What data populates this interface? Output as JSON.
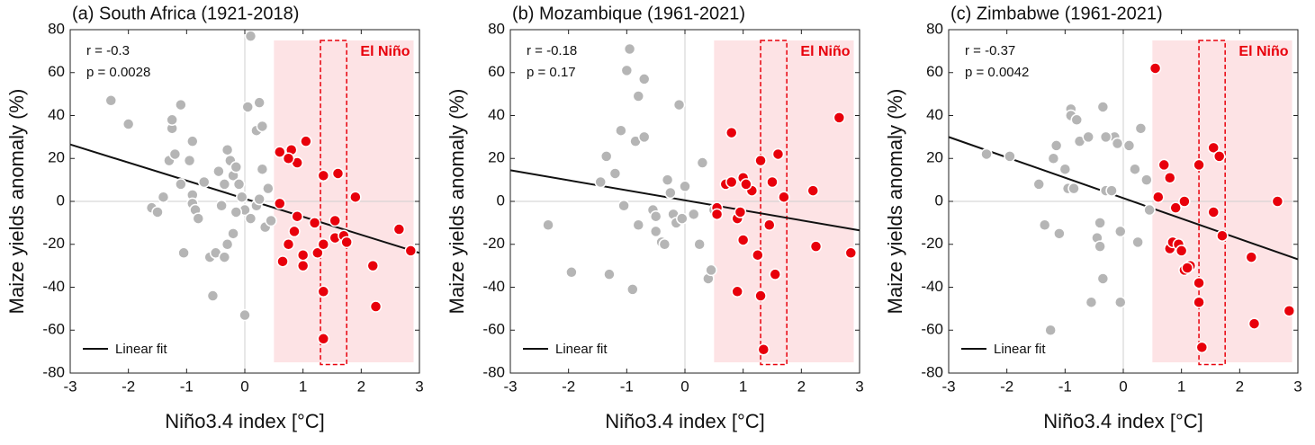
{
  "chart_data": [
    {
      "type": "scatter",
      "title": "(a) South Africa (1921-2018)",
      "x_label": "Niño3.4 index [°C]",
      "y_label": "Maize yields anomaly (%)",
      "xlim": [
        -3,
        3
      ],
      "ylim": [
        -80,
        80
      ],
      "xticks": [
        -3,
        -2,
        -1,
        0,
        1,
        2,
        3
      ],
      "yticks": [
        -80,
        -60,
        -40,
        -20,
        0,
        20,
        40,
        60,
        80
      ],
      "zero_lines": true,
      "annotations": [
        "r = -0.3",
        "p = 0.0028"
      ],
      "shade": {
        "label": "El Niño",
        "color": "#fde3e5",
        "xlim": [
          0.5,
          2.9
        ],
        "ylim": [
          -75,
          75
        ]
      },
      "highlight": {
        "color": "#e8000b",
        "xlim": [
          1.3,
          1.75
        ],
        "ylim": [
          -76,
          75
        ]
      },
      "fit": {
        "name": "Linear fit",
        "color": "#111111",
        "x": [
          -3,
          3
        ],
        "values": [
          26.5,
          -24
        ]
      },
      "series": [
        {
          "color": "#b5b5b5",
          "x": [
            -2.3,
            -2.0,
            -1.6,
            -1.5,
            -1.4,
            -1.3,
            -1.25,
            -1.25,
            -1.2,
            -1.1,
            -1.1,
            -1.05,
            -0.95,
            -0.9,
            -0.9,
            -0.9,
            -0.85,
            -0.8,
            -0.7,
            -0.6,
            -0.55,
            -0.5,
            -0.45,
            -0.4,
            -0.35,
            -0.3,
            -0.25,
            -0.2,
            -0.15,
            -0.1,
            -0.05,
            0.0,
            0.05,
            0.0,
            0.1,
            0.1,
            0.2,
            0.25,
            0.3,
            0.35,
            0.4,
            0.45,
            0.2,
            -0.3,
            -0.15,
            -0.35,
            0.25,
            0.3,
            -0.2
          ],
          "values": [
            47,
            36,
            -3,
            -5,
            2,
            19,
            34,
            38,
            22,
            45,
            8,
            -24,
            19,
            28,
            3,
            -1,
            -4,
            -8,
            9,
            -26,
            -44,
            -24,
            14,
            -2,
            -26,
            24,
            19,
            12,
            16,
            8,
            2,
            -4,
            44,
            -53,
            77,
            -8,
            33,
            46,
            15,
            -12,
            6,
            -9,
            -2,
            -20,
            -5,
            8,
            1,
            35,
            -15
          ]
        },
        {
          "color": "#e8000b",
          "x": [
            0.6,
            0.8,
            0.9,
            1.05,
            0.75,
            0.6,
            0.75,
            0.85,
            0.9,
            0.65,
            1.0,
            1.0,
            1.2,
            1.25,
            1.35,
            1.35,
            1.35,
            1.35,
            1.55,
            1.6,
            1.55,
            1.7,
            1.75,
            1.9,
            2.2,
            2.25,
            2.65,
            2.85
          ],
          "values": [
            23,
            24,
            18,
            28,
            20,
            -1,
            -20,
            -14,
            -7,
            -28,
            -30,
            -25,
            -10,
            -24,
            -20,
            -42,
            -64,
            12,
            -9,
            13,
            -17,
            -16,
            -19,
            2,
            -30,
            -49,
            -13,
            -23
          ]
        }
      ]
    },
    {
      "type": "scatter",
      "title": "(b) Mozambique (1961-2021)",
      "x_label": "Niño3.4 index [°C]",
      "y_label": "Maize yields anomaly (%)",
      "xlim": [
        -3,
        3
      ],
      "ylim": [
        -80,
        80
      ],
      "xticks": [
        -3,
        -2,
        -1,
        0,
        1,
        2,
        3
      ],
      "yticks": [
        -80,
        -60,
        -40,
        -20,
        0,
        20,
        40,
        60,
        80
      ],
      "zero_lines": true,
      "annotations": [
        "r = -0.18",
        "p = 0.17"
      ],
      "shade": {
        "label": "El Niño",
        "color": "#fde3e5",
        "xlim": [
          0.5,
          2.9
        ],
        "ylim": [
          -75,
          75
        ]
      },
      "highlight": {
        "color": "#e8000b",
        "xlim": [
          1.3,
          1.75
        ],
        "ylim": [
          -76,
          75
        ]
      },
      "fit": {
        "name": "Linear fit",
        "color": "#111111",
        "x": [
          -3,
          3
        ],
        "values": [
          14.5,
          -13.5
        ]
      },
      "series": [
        {
          "color": "#b5b5b5",
          "x": [
            -2.35,
            -1.95,
            -1.45,
            -1.35,
            -1.3,
            -1.2,
            -1.1,
            -1.05,
            -0.95,
            -1.0,
            -0.9,
            -0.85,
            -0.8,
            -0.7,
            -0.7,
            -0.8,
            -0.55,
            -0.5,
            -0.4,
            -0.35,
            -0.3,
            -0.25,
            -0.2,
            -0.15,
            -0.1,
            -0.05,
            0.0,
            0.15,
            0.25,
            0.3,
            0.4,
            0.45,
            0.5,
            -0.5
          ],
          "values": [
            -11,
            -33,
            9,
            21,
            -34,
            13,
            33,
            -2,
            71,
            61,
            -41,
            28,
            49,
            57,
            30,
            -11,
            -4,
            -14,
            -19,
            -20,
            10,
            4,
            -6,
            -10,
            45,
            -8,
            7,
            -6,
            -20,
            18,
            -36,
            -32,
            -4,
            -7
          ]
        },
        {
          "color": "#e8000b",
          "x": [
            0.55,
            0.55,
            0.7,
            0.8,
            0.8,
            0.9,
            0.9,
            0.95,
            1.0,
            1.0,
            1.15,
            1.25,
            1.3,
            1.3,
            1.35,
            1.45,
            1.5,
            1.55,
            1.6,
            1.7,
            2.2,
            2.25,
            2.65,
            2.85,
            1.05
          ],
          "values": [
            -3,
            -6,
            8,
            9,
            32,
            -42,
            -8,
            -5,
            11,
            -18,
            5,
            -25,
            19,
            -44,
            -69,
            -11,
            9,
            -34,
            22,
            2,
            5,
            -21,
            39,
            -24,
            8
          ]
        }
      ]
    },
    {
      "type": "scatter",
      "title": "(c) Zimbabwe (1961-2021)",
      "x_label": "Niño3.4 index [°C]",
      "y_label": "Maize yields anomaly (%)",
      "xlim": [
        -3,
        3
      ],
      "ylim": [
        -80,
        80
      ],
      "xticks": [
        -3,
        -2,
        -1,
        0,
        1,
        2,
        3
      ],
      "yticks": [
        -80,
        -60,
        -40,
        -20,
        0,
        20,
        40,
        60,
        80
      ],
      "zero_lines": true,
      "annotations": [
        "r = -0.37",
        "p = 0.0042"
      ],
      "shade": {
        "label": "El Niño",
        "color": "#fde3e5",
        "xlim": [
          0.5,
          2.9
        ],
        "ylim": [
          -75,
          75
        ]
      },
      "highlight": {
        "color": "#e8000b",
        "xlim": [
          1.3,
          1.75
        ],
        "ylim": [
          -76,
          75
        ]
      },
      "fit": {
        "name": "Linear fit",
        "color": "#111111",
        "x": [
          -3,
          3
        ],
        "values": [
          30,
          -27
        ]
      },
      "series": [
        {
          "color": "#b5b5b5",
          "x": [
            -2.35,
            -1.95,
            -1.45,
            -1.35,
            -1.25,
            -1.2,
            -1.15,
            -1.1,
            -1.0,
            -0.95,
            -0.9,
            -0.9,
            -0.85,
            -0.8,
            -0.75,
            -0.6,
            -0.55,
            -0.45,
            -0.4,
            -0.4,
            -0.35,
            -0.3,
            -0.35,
            -0.2,
            -0.15,
            -0.1,
            -0.05,
            -0.05,
            0.1,
            0.2,
            0.25,
            0.3,
            0.4,
            0.45,
            -0.3
          ],
          "values": [
            22,
            21,
            8,
            -11,
            -60,
            20,
            26,
            -15,
            15,
            6,
            43,
            40,
            6,
            38,
            28,
            30,
            -47,
            -17,
            -21,
            -10,
            44,
            5,
            -36,
            5,
            30,
            27,
            -14,
            -47,
            26,
            15,
            -19,
            34,
            10,
            -4,
            30
          ]
        },
        {
          "color": "#e8000b",
          "x": [
            0.55,
            0.6,
            0.7,
            0.8,
            0.8,
            0.85,
            0.9,
            0.95,
            1.0,
            1.05,
            1.05,
            1.15,
            1.3,
            1.3,
            1.3,
            1.35,
            1.55,
            1.55,
            1.65,
            1.7,
            2.2,
            2.25,
            2.65,
            2.85,
            1.1
          ],
          "values": [
            62,
            2,
            17,
            11,
            -22,
            -19,
            -3,
            -20,
            -23,
            0,
            -32,
            -30,
            17,
            -38,
            -47,
            -68,
            25,
            -5,
            21,
            -16,
            -26,
            -57,
            0,
            -51,
            -31
          ]
        }
      ]
    }
  ]
}
